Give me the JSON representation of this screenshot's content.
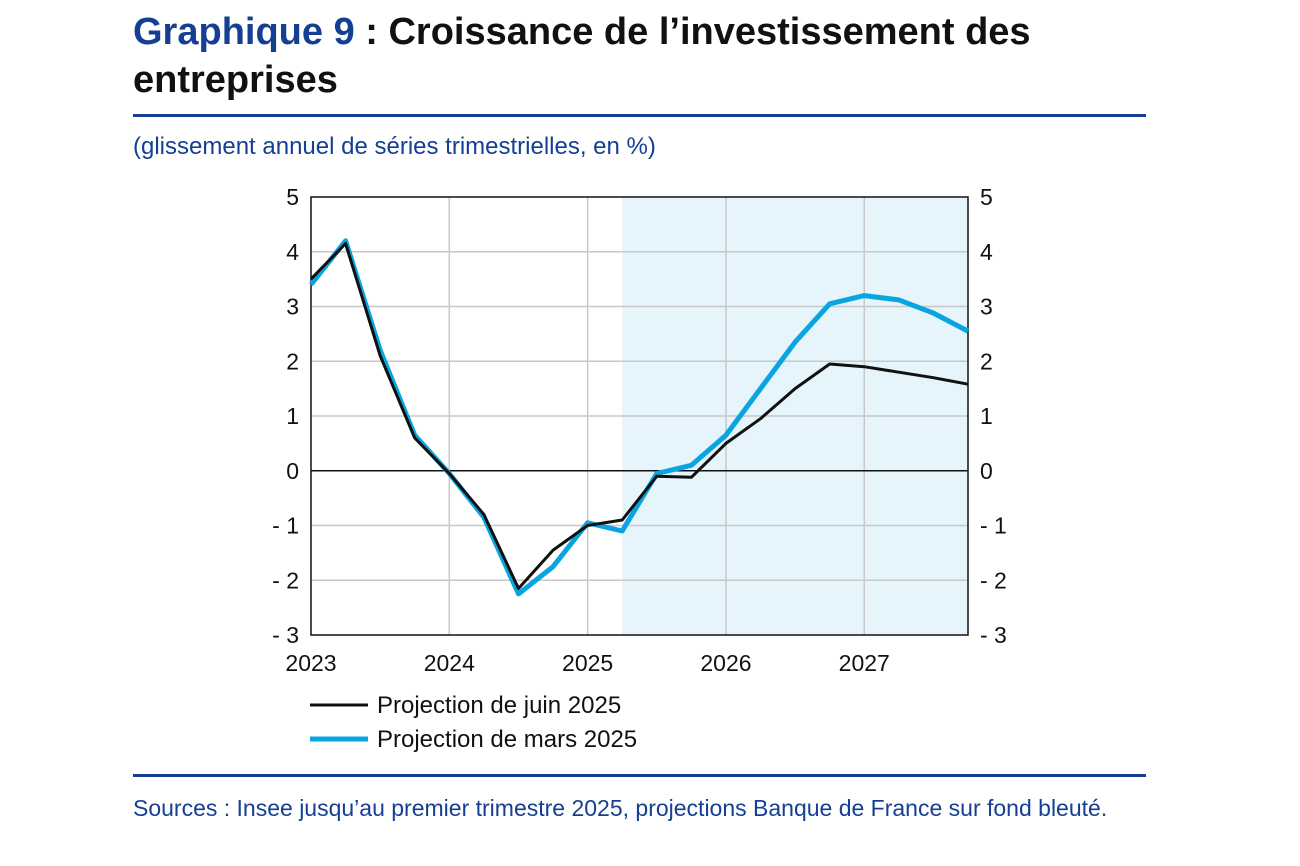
{
  "header": {
    "title_prefix": "Graphique 9",
    "title_rest": " : Croissance de l’investissement des entreprises"
  },
  "subtitle": "(glissement annuel de séries trimestrielles, en %)",
  "source": "Sources : Insee jusqu’au premier trimestre 2025, projections Banque de France sur fond bleuté.",
  "colors": {
    "brand": "#143f93",
    "juin": "#111111",
    "mars": "#0aa5e0",
    "shade": "#e6f4fb",
    "grid": "#c8c8c8"
  },
  "chart_data": {
    "type": "line",
    "x_unit": "quarter",
    "x": [
      "2023-T1",
      "2023-T2",
      "2023-T3",
      "2023-T4",
      "2024-T1",
      "2024-T2",
      "2024-T3",
      "2024-T4",
      "2025-T1",
      "2025-T2",
      "2025-T3",
      "2025-T4",
      "2026-T1",
      "2026-T2",
      "2026-T3",
      "2026-T4",
      "2027-T1",
      "2027-T2",
      "2027-T3",
      "2027-T4"
    ],
    "xticks": [
      "2023",
      "2024",
      "2025",
      "2026",
      "2027"
    ],
    "yticks": [
      "5",
      "4",
      "3",
      "2",
      "1",
      "0",
      "- 1",
      "- 2",
      "- 3"
    ],
    "ylim": [
      -3,
      5
    ],
    "projection_shading_from": "2025-T2",
    "series": [
      {
        "name": "Projection de juin 2025",
        "color": "#111111",
        "values": [
          3.5,
          4.15,
          2.1,
          0.6,
          -0.05,
          -0.8,
          -2.15,
          -1.45,
          -1.0,
          -0.9,
          -0.1,
          -0.12,
          0.5,
          0.95,
          1.5,
          1.95,
          1.9,
          1.8,
          1.7,
          1.58
        ]
      },
      {
        "name": "Projection de mars 2025",
        "color": "#0aa5e0",
        "values": [
          3.4,
          4.2,
          2.2,
          0.65,
          -0.05,
          -0.85,
          -2.25,
          -1.75,
          -0.95,
          -1.1,
          -0.05,
          0.1,
          0.65,
          1.5,
          2.35,
          3.05,
          3.2,
          3.12,
          2.88,
          2.55
        ]
      }
    ]
  }
}
